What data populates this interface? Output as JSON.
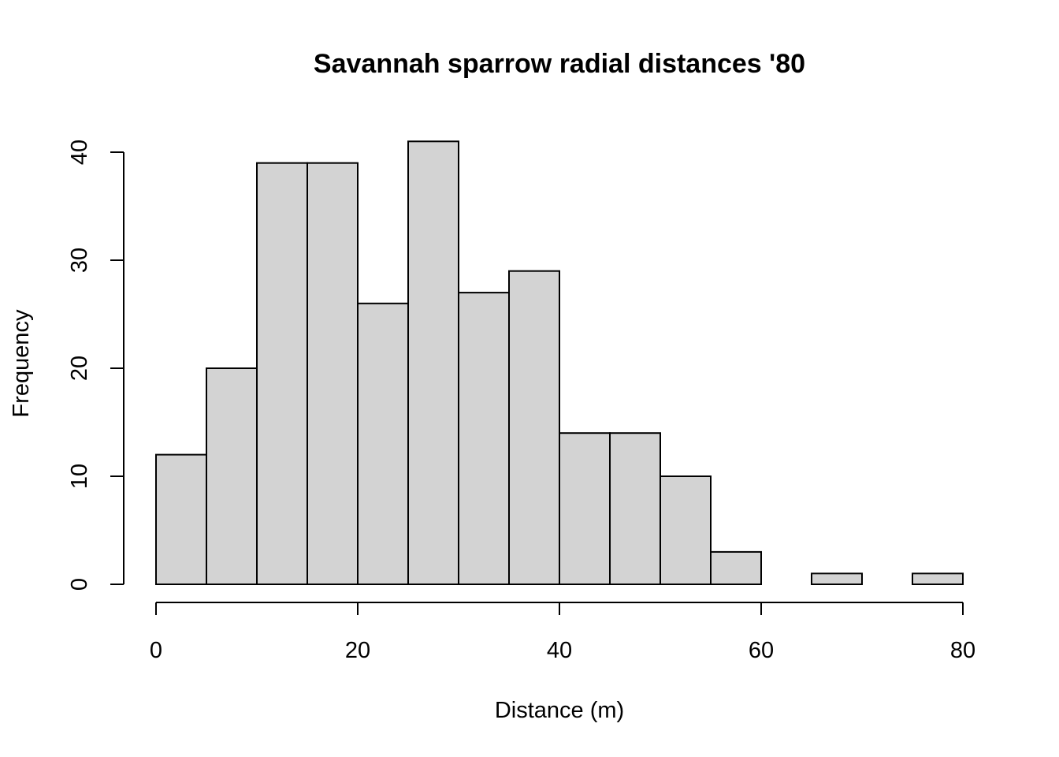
{
  "chart_data": {
    "type": "bar",
    "title": "Savannah sparrow radial distances '80",
    "xlabel": "Distance (m)",
    "ylabel": "Frequency",
    "bins": [
      {
        "start": 0,
        "end": 5,
        "count": 12
      },
      {
        "start": 5,
        "end": 10,
        "count": 20
      },
      {
        "start": 10,
        "end": 15,
        "count": 39
      },
      {
        "start": 15,
        "end": 20,
        "count": 39
      },
      {
        "start": 20,
        "end": 25,
        "count": 26
      },
      {
        "start": 25,
        "end": 30,
        "count": 41
      },
      {
        "start": 30,
        "end": 35,
        "count": 27
      },
      {
        "start": 35,
        "end": 40,
        "count": 29
      },
      {
        "start": 40,
        "end": 45,
        "count": 14
      },
      {
        "start": 45,
        "end": 50,
        "count": 14
      },
      {
        "start": 50,
        "end": 55,
        "count": 10
      },
      {
        "start": 55,
        "end": 60,
        "count": 3
      },
      {
        "start": 60,
        "end": 65,
        "count": 0
      },
      {
        "start": 65,
        "end": 70,
        "count": 1
      },
      {
        "start": 70,
        "end": 75,
        "count": 0
      },
      {
        "start": 75,
        "end": 80,
        "count": 1
      }
    ],
    "xlim": [
      0,
      80
    ],
    "ylim": [
      0,
      41
    ],
    "xticks": [
      0,
      20,
      40,
      60,
      80
    ],
    "yticks": [
      0,
      10,
      20,
      30,
      40
    ],
    "grid": false,
    "legend": "none",
    "bar_color": "#d3d3d3",
    "border_color": "#000000"
  }
}
